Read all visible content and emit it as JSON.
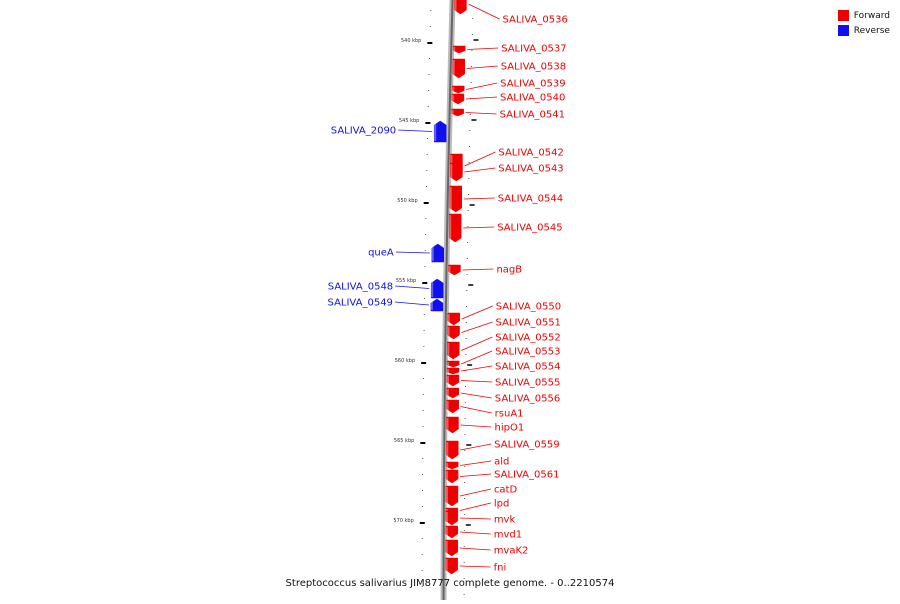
{
  "title": "Streptococcus salivarius JIM8777 complete genome. - 0..2210574",
  "colors": {
    "forward": "#ee0000",
    "reverse": "#1010ee",
    "backbone": "#8a8a8a"
  },
  "legend": [
    {
      "label": "Forward",
      "color": "#ee0000"
    },
    {
      "label": "Reverse",
      "color": "#1010ee"
    }
  ],
  "ticks": [
    "540 kbp",
    "545 kbp",
    "550 kbp",
    "555 kbp",
    "560 kbp",
    "565 kbp",
    "570 kbp"
  ],
  "genes": [
    {
      "name": "SALIVA_0536",
      "strand": "forward"
    },
    {
      "name": "SALIVA_0537",
      "strand": "forward"
    },
    {
      "name": "SALIVA_0538",
      "strand": "forward"
    },
    {
      "name": "SALIVA_0539",
      "strand": "forward"
    },
    {
      "name": "SALIVA_0540",
      "strand": "forward"
    },
    {
      "name": "SALIVA_0541",
      "strand": "forward"
    },
    {
      "name": "SALIVA_2090",
      "strand": "reverse"
    },
    {
      "name": "SALIVA_0542",
      "strand": "forward"
    },
    {
      "name": "SALIVA_0543",
      "strand": "forward"
    },
    {
      "name": "SALIVA_0544",
      "strand": "forward"
    },
    {
      "name": "SALIVA_0545",
      "strand": "forward"
    },
    {
      "name": "queA",
      "strand": "reverse"
    },
    {
      "name": "nagB",
      "strand": "forward"
    },
    {
      "name": "SALIVA_0548",
      "strand": "reverse"
    },
    {
      "name": "SALIVA_0549",
      "strand": "reverse"
    },
    {
      "name": "SALIVA_0550",
      "strand": "forward"
    },
    {
      "name": "SALIVA_0551",
      "strand": "forward"
    },
    {
      "name": "SALIVA_0552",
      "strand": "forward"
    },
    {
      "name": "SALIVA_0553",
      "strand": "forward"
    },
    {
      "name": "SALIVA_0554",
      "strand": "forward"
    },
    {
      "name": "SALIVA_0555",
      "strand": "forward"
    },
    {
      "name": "SALIVA_0556",
      "strand": "forward"
    },
    {
      "name": "rsuA1",
      "strand": "forward"
    },
    {
      "name": "hipO1",
      "strand": "forward"
    },
    {
      "name": "SALIVA_0559",
      "strand": "forward"
    },
    {
      "name": "ald",
      "strand": "forward"
    },
    {
      "name": "SALIVA_0561",
      "strand": "forward"
    },
    {
      "name": "catD",
      "strand": "forward"
    },
    {
      "name": "lpd",
      "strand": "forward"
    },
    {
      "name": "mvk",
      "strand": "forward"
    },
    {
      "name": "mvd1",
      "strand": "forward"
    },
    {
      "name": "mvaK2",
      "strand": "forward"
    },
    {
      "name": "fni",
      "strand": "forward"
    }
  ]
}
